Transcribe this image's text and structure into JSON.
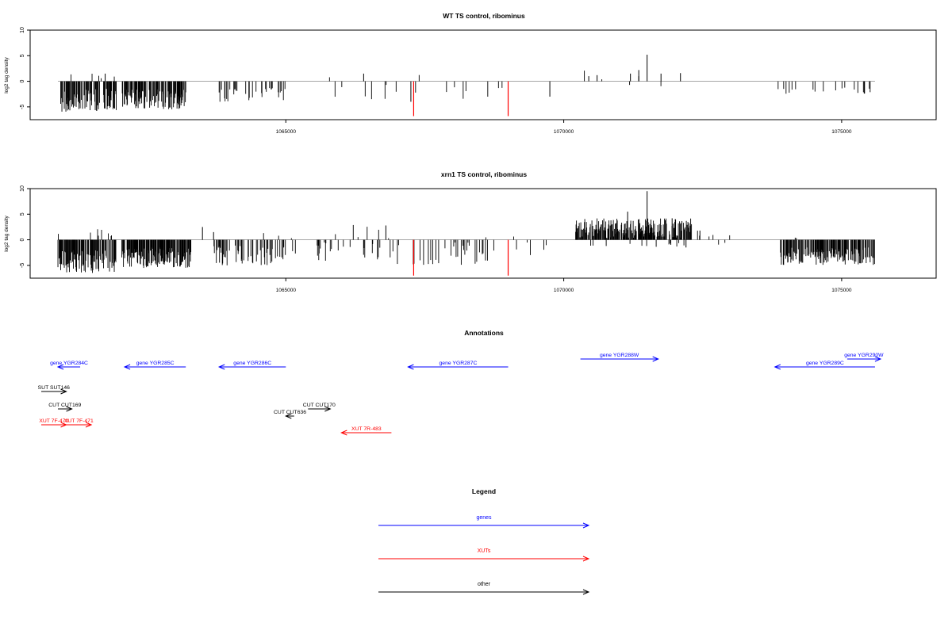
{
  "colors": {
    "gene": "#0000ff",
    "xut": "#ff0000",
    "other": "#000000",
    "track": "#000000",
    "highlight": "#ff0000"
  },
  "chart_data": [
    {
      "type": "bar",
      "title": "WT TS control, ribominus",
      "ylabel": "log2 tag density",
      "xlim": [
        1060400,
        1076700
      ],
      "ylim": [
        -7.5,
        10
      ],
      "xticks": [
        1065000,
        1070000,
        1075000
      ],
      "xtick_labels": [
        "1065000",
        "1070000",
        "1075000"
      ],
      "yticks": [
        -5,
        0,
        5,
        10
      ],
      "ytick_labels": [
        "-5",
        "0",
        "5",
        "10"
      ],
      "profile_extent": [
        1060900,
        1075600
      ],
      "seed": 7,
      "segments": [
        {
          "start": 1060950,
          "end": 1061950,
          "density": 0.55,
          "min": -6,
          "max": -1.5,
          "pos_prob": 0.02,
          "pos_max": 1.5
        },
        {
          "start": 1062050,
          "end": 1062650,
          "density": 0.55,
          "min": -5.5,
          "max": -1.5,
          "pos_prob": 0,
          "pos_max": 0
        },
        {
          "start": 1062650,
          "end": 1063200,
          "density": 0.55,
          "min": -5.5,
          "max": -1.5,
          "pos_prob": 0,
          "pos_max": 0
        },
        {
          "start": 1063800,
          "end": 1065000,
          "density": 0.18,
          "min": -4,
          "max": -1,
          "pos_prob": 0,
          "pos_max": 0
        },
        {
          "start": 1065700,
          "end": 1069300,
          "density": 0.04,
          "min": -3.5,
          "max": -0.5,
          "pos_prob": 0.05,
          "pos_max": 1.5
        },
        {
          "start": 1070300,
          "end": 1072100,
          "density": 0.02,
          "min": -1,
          "max": -0.5,
          "pos_prob": 0.6,
          "pos_max": 2
        },
        {
          "start": 1073800,
          "end": 1075600,
          "density": 0.05,
          "min": -2.5,
          "max": -1,
          "pos_prob": 0,
          "pos_max": 0
        }
      ],
      "peaks": [
        {
          "x": 1061750,
          "y": 1.5
        },
        {
          "x": 1066400,
          "y": 1.5
        },
        {
          "x": 1067250,
          "y": -4
        },
        {
          "x": 1069750,
          "y": -3
        },
        {
          "x": 1070450,
          "y": 1
        },
        {
          "x": 1070600,
          "y": 1.2
        },
        {
          "x": 1071200,
          "y": 1.5
        },
        {
          "x": 1071350,
          "y": 1
        },
        {
          "x": 1071350,
          "y": 2.2
        },
        {
          "x": 1071500,
          "y": 5.2
        },
        {
          "x": 1071750,
          "y": 1.5
        },
        {
          "x": 1072100,
          "y": 1.6
        }
      ],
      "highlights": [
        {
          "x": 1067300,
          "y": -6.8
        },
        {
          "x": 1069000,
          "y": -6.8
        }
      ]
    },
    {
      "type": "bar",
      "title": "xrn1 TS control, ribominus",
      "ylabel": "log2 tag density",
      "xlim": [
        1060400,
        1076700
      ],
      "ylim": [
        -7.5,
        10
      ],
      "xticks": [
        1065000,
        1070000,
        1075000
      ],
      "xtick_labels": [
        "1065000",
        "1070000",
        "1075000"
      ],
      "yticks": [
        -5,
        0,
        5,
        10
      ],
      "ytick_labels": [
        "-5",
        "0",
        "5",
        "10"
      ],
      "profile_extent": [
        1060900,
        1075600
      ],
      "seed": 13,
      "segments": [
        {
          "start": 1060900,
          "end": 1061950,
          "density": 0.7,
          "min": -6.5,
          "max": -2,
          "pos_prob": 0.08,
          "pos_max": 2.5
        },
        {
          "start": 1062050,
          "end": 1063300,
          "density": 0.7,
          "min": -5.5,
          "max": -1.5,
          "pos_prob": 0,
          "pos_max": 0
        },
        {
          "start": 1063700,
          "end": 1065000,
          "density": 0.35,
          "min": -5,
          "max": -1,
          "pos_prob": 0.04,
          "pos_max": 2.5
        },
        {
          "start": 1065000,
          "end": 1067000,
          "density": 0.14,
          "min": -4.5,
          "max": -0.5,
          "pos_prob": 0.12,
          "pos_max": 2.8
        },
        {
          "start": 1067000,
          "end": 1068800,
          "density": 0.16,
          "min": -5,
          "max": -0.5,
          "pos_prob": 0.05,
          "pos_max": 1.5
        },
        {
          "start": 1069100,
          "end": 1070000,
          "density": 0.07,
          "min": -3,
          "max": -0.5,
          "pos_prob": 0.08,
          "pos_max": 1.5
        },
        {
          "start": 1070200,
          "end": 1072300,
          "density": 0.7,
          "min": -1.5,
          "max": -0.5,
          "pos_prob": 0.94,
          "pos_max": 4
        },
        {
          "start": 1072300,
          "end": 1073000,
          "density": 0.03,
          "min": -1.5,
          "max": -0.5,
          "pos_prob": 0.7,
          "pos_max": 1.5
        },
        {
          "start": 1073900,
          "end": 1075600,
          "density": 0.55,
          "min": -5,
          "max": -1.5,
          "pos_prob": 0.03,
          "pos_max": 1
        }
      ],
      "peaks": [
        {
          "x": 1063500,
          "y": 2.5
        },
        {
          "x": 1063700,
          "y": 1.5
        },
        {
          "x": 1066800,
          "y": 2.8
        },
        {
          "x": 1071500,
          "y": 9.5
        },
        {
          "x": 1071150,
          "y": 5.5
        },
        {
          "x": 1071950,
          "y": 4.2
        },
        {
          "x": 1072450,
          "y": 1.8
        },
        {
          "x": 1072200,
          "y": -1.5
        }
      ],
      "highlights": [
        {
          "x": 1067300,
          "y": -7
        },
        {
          "x": 1069000,
          "y": -7
        }
      ]
    }
  ],
  "annotations": {
    "title": "Annotations",
    "features": [
      {
        "label": "gene YGR284C",
        "class": "gene",
        "start": 1061300,
        "end": 1060900,
        "row": 0
      },
      {
        "label": "gene YGR285C",
        "class": "gene",
        "start": 1063200,
        "end": 1062100,
        "row": 0
      },
      {
        "label": "gene YGR286C",
        "class": "gene",
        "start": 1065000,
        "end": 1063800,
        "row": 0
      },
      {
        "label": "gene YGR287C",
        "class": "gene",
        "start": 1069000,
        "end": 1067200,
        "row": 0
      },
      {
        "label": "gene YGR288W",
        "class": "gene",
        "start": 1070300,
        "end": 1071700,
        "row": 1
      },
      {
        "label": "gene YGR289C",
        "class": "gene",
        "start": 1075600,
        "end": 1073800,
        "row": 0
      },
      {
        "label": "gene YGR290W",
        "class": "gene",
        "start": 1075100,
        "end": 1075700,
        "row": 1
      },
      {
        "label": "SUT SUT146",
        "class": "other",
        "start": 1060600,
        "end": 1061050,
        "row": 2
      },
      {
        "label": "CUT CUT169",
        "class": "other",
        "start": 1060900,
        "end": 1061150,
        "row": 3
      },
      {
        "label": "CUT CUT170",
        "class": "other",
        "start": 1065400,
        "end": 1065800,
        "row": 3
      },
      {
        "label": "CUT CUT636",
        "class": "other",
        "start": 1065150,
        "end": 1065000,
        "row": 4
      },
      {
        "label": "XUT 7F-470",
        "class": "xut",
        "start": 1060600,
        "end": 1061050,
        "row": 5
      },
      {
        "label": "XUT 7F-471",
        "class": "xut",
        "start": 1061050,
        "end": 1061500,
        "row": 5
      },
      {
        "label": "XUT 7R-483",
        "class": "xut",
        "start": 1066900,
        "end": 1066000,
        "row": 6
      }
    ]
  },
  "legend": {
    "title": "Legend",
    "items": [
      {
        "label": "genes",
        "class": "gene"
      },
      {
        "label": "XUTs",
        "class": "xut"
      },
      {
        "label": "other",
        "class": "other"
      }
    ]
  }
}
